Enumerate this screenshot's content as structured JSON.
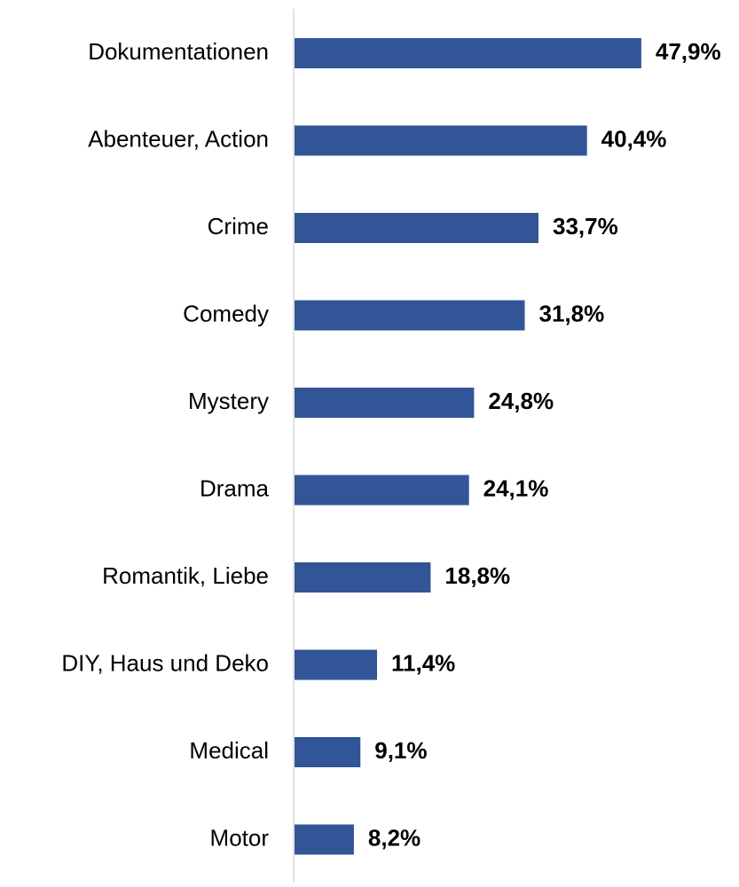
{
  "chart_data": {
    "type": "bar",
    "orientation": "horizontal",
    "color": "#325597",
    "categories": [
      "Dokumentationen",
      "Abenteuer, Action",
      "Crime",
      "Comedy",
      "Mystery",
      "Drama",
      "Romantik, Liebe",
      "DIY, Haus und Deko",
      "Medical",
      "Motor"
    ],
    "values": [
      47.9,
      40.4,
      33.7,
      31.8,
      24.8,
      24.1,
      18.8,
      11.4,
      9.1,
      8.2
    ],
    "value_labels": [
      "47,9%",
      "40,4%",
      "33,7%",
      "31,8%",
      "24,8%",
      "24,1%",
      "18,8%",
      "11,4%",
      "9,1%",
      "8,2%"
    ]
  }
}
